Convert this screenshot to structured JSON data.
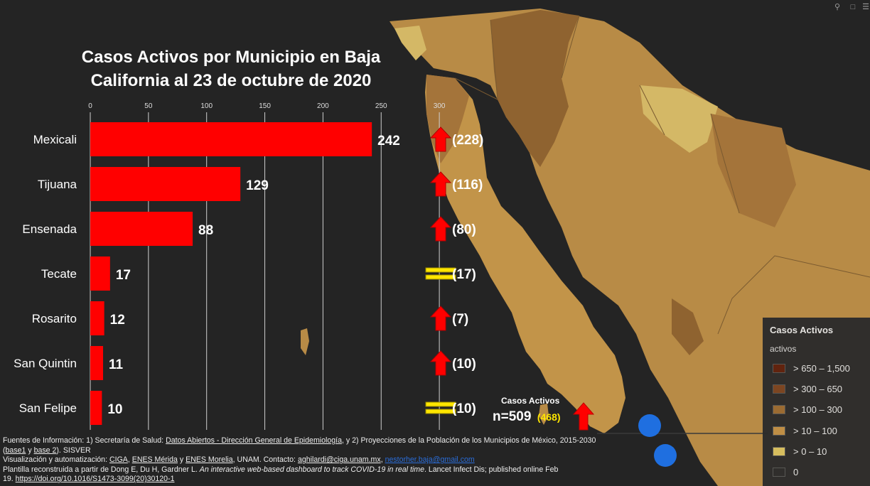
{
  "map": {
    "tools": [
      "search-icon",
      "bookmark-icon",
      "list-icon"
    ],
    "legend": {
      "title": "Casos Activos",
      "subtitle": "activos",
      "items": [
        {
          "label": "> 650 – 1,500",
          "color": "#5e1f0c"
        },
        {
          "label": "> 300 – 650",
          "color": "#7a4320"
        },
        {
          "label": "> 100 – 300",
          "color": "#9a6a32"
        },
        {
          "label": "> 10 – 100",
          "color": "#c08f45"
        },
        {
          "label": "> 0 – 10",
          "color": "#d8c060"
        },
        {
          "label": "0",
          "color": "#2b2b2b"
        }
      ]
    },
    "colors": {
      "ocean": "#242424",
      "land_base": "#b88b46",
      "land_dark": "#8f6330",
      "land_light": "#cfb066",
      "marker": "#1f6fe0"
    }
  },
  "chart_data": {
    "type": "bar",
    "orientation": "horizontal",
    "title": "Casos Activos por Municipio en Baja California al 23 de octubre de 2020",
    "xlabel": "",
    "ylabel": "",
    "xlim": [
      0,
      300
    ],
    "xticks": [
      0,
      50,
      100,
      150,
      200,
      250,
      300
    ],
    "grid": true,
    "bar_color": "#ff0000",
    "categories": [
      "Mexicali",
      "Tijuana",
      "Ensenada",
      "Tecate",
      "Rosarito",
      "San Quintin",
      "San Felipe"
    ],
    "values": [
      242,
      129,
      88,
      17,
      12,
      11,
      10
    ],
    "previous_values": [
      228,
      116,
      80,
      17,
      7,
      10,
      10
    ],
    "previous_labels": [
      "(228)",
      "(116)",
      "(80)",
      "(17)",
      "(7)",
      "(10)",
      "(10)"
    ],
    "trend": [
      "up",
      "up",
      "up",
      "equal",
      "up",
      "up",
      "equal"
    ],
    "trend_colors": {
      "up": "#ff0000",
      "equal": "#ffe600"
    },
    "total": {
      "label": "Casos Activos",
      "value": "n=509",
      "previous": "(468)",
      "trend": "up"
    }
  },
  "sources": {
    "line1": {
      "prefix": "Fuentes de Información: 1) Secretaría de Salud: ",
      "link1": "Datos Abiertos - Dirección General de Epidemiología",
      "mid": ", y 2) Proyecciones de la Población de los Municipios de México, 2015-2030"
    },
    "line2": {
      "open": "(",
      "link1": "base1",
      "mid": " y ",
      "link2": "base 2",
      "suffix": "). SISVER"
    },
    "line3": {
      "prefix": " Visualización y automatización: ",
      "link1": "CIGA",
      "sep1": ", ",
      "link2": "ENES Mérida",
      "sep2": " y ",
      "link3": "ENES Morelia",
      "mid": ", UNAM. Contacto: ",
      "email1": "aghilardi@ciga.unam.mx",
      "sep3": ", ",
      "email2": "nestorher.baja@gmail.com"
    },
    "line4": {
      "prefix": " Plantilla reconstruida a partir de Dong E, Du H, Gardner L. ",
      "italic": "An interactive web-based dashboard to track COVID-19 in real time",
      "suffix": ". Lancet Infect Dis; published online Feb"
    },
    "line5": {
      "prefix": "19. ",
      "doi": "https://doi.org/10.1016/S1473-3099(20)30120-1"
    }
  }
}
